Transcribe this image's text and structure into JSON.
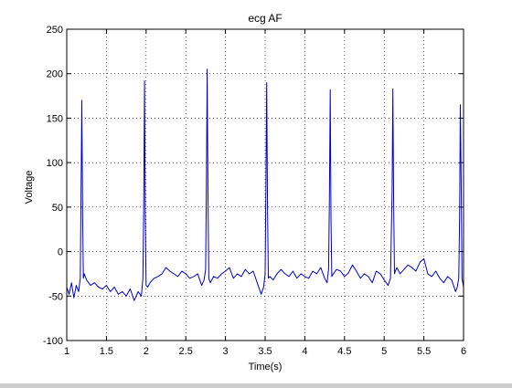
{
  "chart_data": {
    "type": "line",
    "title": "ecg AF",
    "xlabel": "Time(s)",
    "ylabel": "Voltage",
    "xlim": [
      1,
      6
    ],
    "ylim": [
      -100,
      250
    ],
    "grid": true,
    "xticks": [
      1,
      1.5,
      2,
      2.5,
      3,
      3.5,
      4,
      4.5,
      5,
      5.5,
      6
    ],
    "xtick_labels": [
      "1",
      "1.5",
      "2",
      "2.5",
      "3",
      "3.5",
      "4",
      "4.5",
      "5",
      "5.5",
      "6"
    ],
    "yticks": [
      -100,
      -50,
      0,
      50,
      100,
      150,
      200,
      250
    ],
    "ytick_labels": [
      "-100",
      "-50",
      "0",
      "50",
      "100",
      "150",
      "200",
      "250"
    ],
    "line_color": "#0000cc",
    "series": [
      {
        "x": [
          1.0,
          1.03,
          1.06,
          1.09,
          1.12,
          1.15,
          1.17,
          1.18,
          1.19,
          1.2,
          1.21,
          1.22,
          1.25,
          1.3,
          1.35,
          1.4,
          1.45,
          1.5,
          1.55,
          1.6,
          1.65,
          1.7,
          1.75,
          1.8,
          1.85,
          1.9,
          1.94,
          1.96,
          1.97,
          1.98,
          1.99,
          2.0,
          2.02,
          2.05,
          2.1,
          2.15,
          2.2,
          2.25,
          2.3,
          2.35,
          2.4,
          2.45,
          2.5,
          2.55,
          2.6,
          2.65,
          2.7,
          2.73,
          2.75,
          2.76,
          2.77,
          2.78,
          2.79,
          2.81,
          2.85,
          2.9,
          2.95,
          3.0,
          3.05,
          3.1,
          3.15,
          3.2,
          3.25,
          3.3,
          3.35,
          3.4,
          3.45,
          3.48,
          3.5,
          3.51,
          3.52,
          3.53,
          3.54,
          3.56,
          3.6,
          3.65,
          3.7,
          3.75,
          3.8,
          3.85,
          3.9,
          3.95,
          4.0,
          4.05,
          4.1,
          4.15,
          4.2,
          4.25,
          4.28,
          4.3,
          4.31,
          4.32,
          4.33,
          4.34,
          4.36,
          4.4,
          4.45,
          4.5,
          4.55,
          4.6,
          4.65,
          4.7,
          4.75,
          4.8,
          4.85,
          4.9,
          4.95,
          5.0,
          5.05,
          5.08,
          5.1,
          5.11,
          5.12,
          5.13,
          5.14,
          5.16,
          5.2,
          5.25,
          5.3,
          5.35,
          5.4,
          5.45,
          5.5,
          5.55,
          5.6,
          5.65,
          5.7,
          5.75,
          5.8,
          5.85,
          5.9,
          5.92,
          5.94,
          5.95,
          5.96,
          5.97,
          5.98,
          6.0
        ],
        "y": [
          -40,
          -48,
          -35,
          -52,
          -38,
          -45,
          -30,
          60,
          170,
          40,
          -30,
          -25,
          -32,
          -38,
          -35,
          -40,
          -42,
          -38,
          -45,
          -40,
          -48,
          -45,
          -50,
          -42,
          -55,
          -45,
          -50,
          -30,
          50,
          192,
          40,
          -38,
          -40,
          -35,
          -30,
          -28,
          -25,
          -18,
          -22,
          -25,
          -28,
          -22,
          -25,
          -30,
          -28,
          -25,
          -38,
          -32,
          -20,
          80,
          205,
          60,
          -30,
          -35,
          -28,
          -30,
          -25,
          -22,
          -18,
          -30,
          -25,
          -28,
          -20,
          -25,
          -22,
          -35,
          -48,
          -40,
          -25,
          80,
          190,
          50,
          -30,
          -28,
          -32,
          -25,
          -20,
          -25,
          -28,
          -22,
          -30,
          -25,
          -28,
          -30,
          -22,
          -25,
          -18,
          -30,
          -35,
          -20,
          60,
          182,
          40,
          -28,
          -25,
          -20,
          -22,
          -28,
          -24,
          -15,
          -22,
          -30,
          -25,
          -28,
          -35,
          -22,
          -25,
          -32,
          -38,
          -30,
          70,
          183,
          50,
          -25,
          -22,
          -18,
          -25,
          -20,
          -15,
          -18,
          -22,
          -12,
          -8,
          -25,
          -28,
          -22,
          -30,
          -35,
          -28,
          -32,
          -45,
          -40,
          -30,
          40,
          165,
          80,
          -30,
          -40
        ]
      }
    ]
  }
}
